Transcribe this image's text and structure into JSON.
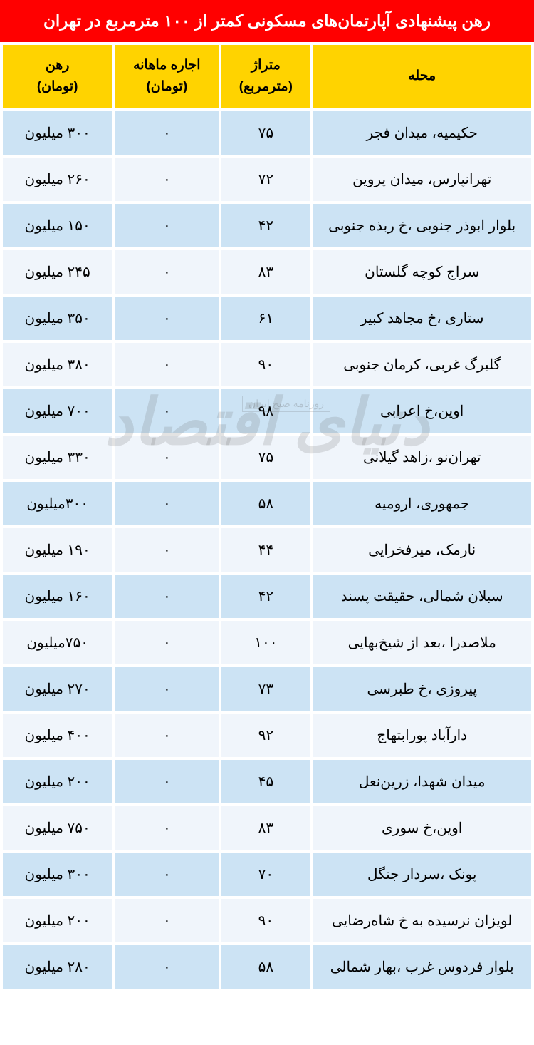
{
  "title": "رهن پیشنهادی آپارتمان‌های مسکونی کمتر از ۱۰۰ مترمربع در تهران",
  "columns": {
    "neighborhood": "محله",
    "area": "متراژ\n(مترمربع)",
    "rent": "اجاره ماهانه\n(تومان)",
    "deposit": "رهن\n(تومان)"
  },
  "watermark_main": "دنیای اقتصاد",
  "watermark_sub": "روزنامه صبح ایران",
  "rows": [
    {
      "neighborhood": "حکیمیه، میدان فجر",
      "area": "۷۵",
      "rent": "۰",
      "deposit": "۳۰۰ میلیون"
    },
    {
      "neighborhood": "تهرانپارس، میدان پروین",
      "area": "۷۲",
      "rent": "۰",
      "deposit": "۲۶۰ میلیون"
    },
    {
      "neighborhood": "بلوار ابوذر جنوبی ،خ ربذه جنوبی",
      "area": "۴۲",
      "rent": "۰",
      "deposit": "۱۵۰ میلیون"
    },
    {
      "neighborhood": "سراج کوچه گلستان",
      "area": "۸۳",
      "rent": "۰",
      "deposit": "۲۴۵ میلیون"
    },
    {
      "neighborhood": "ستاری ،خ مجاهد کبیر",
      "area": "۶۱",
      "rent": "۰",
      "deposit": "۳۵۰ میلیون"
    },
    {
      "neighborhood": "گلبرگ غربی، کرمان جنوبی",
      "area": "۹۰",
      "rent": "۰",
      "deposit": "۳۸۰ میلیون"
    },
    {
      "neighborhood": "اوین،خ اعرابی",
      "area": "۹۸",
      "rent": "۰",
      "deposit": "۷۰۰ میلیون"
    },
    {
      "neighborhood": "تهران‌نو ،زاهد گیلانی",
      "area": "۷۵",
      "rent": "۰",
      "deposit": "۳۳۰ میلیون"
    },
    {
      "neighborhood": "جمهوری، ارومیه",
      "area": "۵۸",
      "rent": "۰",
      "deposit": "۳۰۰میلیون"
    },
    {
      "neighborhood": "نارمک، میرفخرایی",
      "area": "۴۴",
      "rent": "۰",
      "deposit": "۱۹۰ میلیون"
    },
    {
      "neighborhood": "سبلان شمالی، حقیقت پسند",
      "area": "۴۲",
      "rent": "۰",
      "deposit": "۱۶۰ میلیون"
    },
    {
      "neighborhood": "ملاصدرا ،بعد از شیخ‌بهایی",
      "area": "۱۰۰",
      "rent": "۰",
      "deposit": "۷۵۰میلیون"
    },
    {
      "neighborhood": "پیروزی ،خ طبرسی",
      "area": "۷۳",
      "rent": "۰",
      "deposit": "۲۷۰ میلیون"
    },
    {
      "neighborhood": "دارآباد پورابتهاج",
      "area": "۹۲",
      "rent": "۰",
      "deposit": "۴۰۰ میلیون"
    },
    {
      "neighborhood": "میدان شهدا، زرین‌نعل",
      "area": "۴۵",
      "rent": "۰",
      "deposit": "۲۰۰ میلیون"
    },
    {
      "neighborhood": "اوین،خ سوری",
      "area": "۸۳",
      "rent": "۰",
      "deposit": "۷۵۰ میلیون"
    },
    {
      "neighborhood": "پونک ،سردار جنگل",
      "area": "۷۰",
      "rent": "۰",
      "deposit": "۳۰۰ میلیون"
    },
    {
      "neighborhood": "لویزان نرسیده به خ شاه‌رضایی",
      "area": "۹۰",
      "rent": "۰",
      "deposit": "۲۰۰ میلیون"
    },
    {
      "neighborhood": "بلوار فردوس غرب ،بهار شمالی",
      "area": "۵۸",
      "rent": "۰",
      "deposit": "۲۸۰ میلیون"
    }
  ],
  "styles": {
    "title_bg": "#ff0000",
    "title_color": "#ffffff",
    "header_bg": "#ffd300",
    "row_odd_bg": "#cce3f4",
    "row_even_bg": "#f0f5fb"
  }
}
